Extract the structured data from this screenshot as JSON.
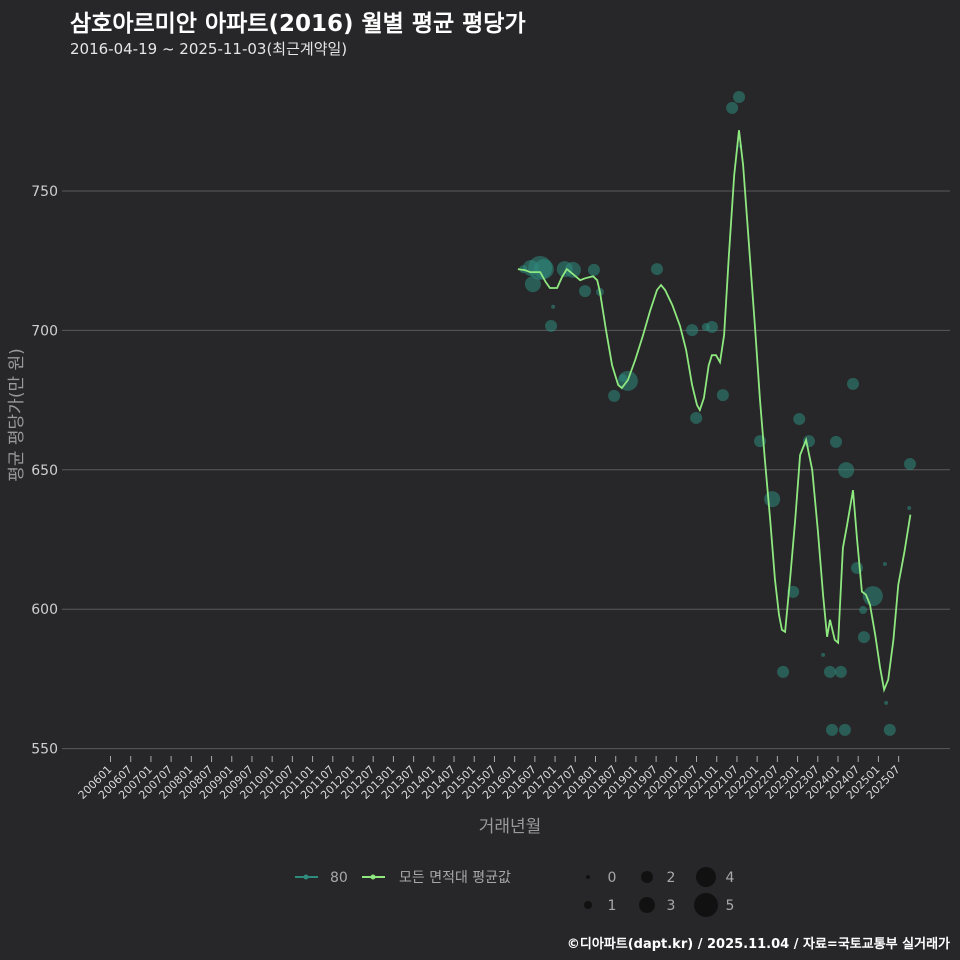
{
  "title": "삼호아르미안 아파트(2016) 월별 평균 평당가",
  "subtitle": "2016-04-19 ~ 2025-11-03(최근계약일)",
  "caption": "©디아파트(dapt.kr) / 2025.11.04 / 자료=국토교통부 실거래가",
  "colors": {
    "background": "#272729",
    "grid": "#5a5a5c",
    "line": "#8ee87f",
    "point": "#2f8a7e"
  },
  "chart_data": {
    "type": "line",
    "title": "삼호아르미안 아파트(2016) 월별 평균 평당가",
    "xlabel": "거래년월",
    "ylabel": "평균 평당가(만 원)",
    "ylim": [
      550,
      785
    ],
    "yticks": [
      550,
      600,
      650,
      700,
      750
    ],
    "xlim_year": [
      2006.0,
      2025.75
    ],
    "xticks": [
      "200601",
      "200607",
      "200701",
      "200707",
      "200801",
      "200807",
      "200901",
      "200907",
      "201001",
      "201007",
      "201101",
      "201107",
      "201201",
      "201207",
      "201301",
      "201307",
      "201401",
      "201407",
      "201501",
      "201507",
      "201601",
      "201607",
      "201701",
      "201707",
      "201801",
      "201807",
      "201901",
      "201907",
      "202001",
      "202007",
      "202101",
      "202107",
      "202201",
      "202207",
      "202301",
      "202307",
      "202401",
      "202407",
      "202501",
      "202507"
    ],
    "grid": true,
    "legend": {
      "position": "bottom",
      "series_items": [
        {
          "label": "80"
        },
        {
          "label": "모든 면적대 평균값"
        }
      ],
      "size_items": [
        "0",
        "1",
        "2",
        "3",
        "4",
        "5"
      ]
    },
    "series": [
      {
        "name": "모든 면적대 평균값",
        "type": "line",
        "points": [
          [
            2016.08,
            722.0
          ],
          [
            2016.26,
            721.6
          ],
          [
            2016.38,
            720.9
          ],
          [
            2016.63,
            720.9
          ],
          [
            2016.77,
            717.3
          ],
          [
            2016.87,
            715.2
          ],
          [
            2017.05,
            715.2
          ],
          [
            2017.17,
            719.1
          ],
          [
            2017.29,
            722.0
          ],
          [
            2017.44,
            720.2
          ],
          [
            2017.62,
            718.0
          ],
          [
            2017.74,
            718.7
          ],
          [
            2017.94,
            719.4
          ],
          [
            2018.04,
            718.0
          ],
          [
            2018.11,
            713.7
          ],
          [
            2018.26,
            700.1
          ],
          [
            2018.41,
            687.5
          ],
          [
            2018.56,
            680.4
          ],
          [
            2018.65,
            679.3
          ],
          [
            2018.8,
            682.2
          ],
          [
            2018.98,
            689.4
          ],
          [
            2019.17,
            698.0
          ],
          [
            2019.35,
            707.0
          ],
          [
            2019.52,
            714.5
          ],
          [
            2019.62,
            716.3
          ],
          [
            2019.72,
            714.5
          ],
          [
            2019.9,
            709.1
          ],
          [
            2020.09,
            701.6
          ],
          [
            2020.24,
            693.0
          ],
          [
            2020.39,
            680.4
          ],
          [
            2020.51,
            673.2
          ],
          [
            2020.58,
            671.4
          ],
          [
            2020.68,
            675.7
          ],
          [
            2020.8,
            687.5
          ],
          [
            2020.88,
            691.1
          ],
          [
            2020.98,
            691.1
          ],
          [
            2021.08,
            688.6
          ],
          [
            2021.18,
            698.3
          ],
          [
            2021.3,
            727.0
          ],
          [
            2021.43,
            755.7
          ],
          [
            2021.55,
            771.8
          ],
          [
            2021.65,
            759.3
          ],
          [
            2021.77,
            736.0
          ],
          [
            2021.95,
            700.1
          ],
          [
            2022.07,
            675.0
          ],
          [
            2022.19,
            653.5
          ],
          [
            2022.32,
            632.0
          ],
          [
            2022.44,
            610.5
          ],
          [
            2022.54,
            598.0
          ],
          [
            2022.61,
            592.6
          ],
          [
            2022.69,
            591.9
          ],
          [
            2022.81,
            610.5
          ],
          [
            2022.94,
            632.0
          ],
          [
            2023.06,
            655.3
          ],
          [
            2023.21,
            660.7
          ],
          [
            2023.36,
            650.0
          ],
          [
            2023.5,
            628.0
          ],
          [
            2023.63,
            605.0
          ],
          [
            2023.73,
            590.1
          ],
          [
            2023.8,
            596.2
          ],
          [
            2023.92,
            589.0
          ],
          [
            2024.0,
            588.0
          ],
          [
            2024.12,
            622.0
          ],
          [
            2024.22,
            630.0
          ],
          [
            2024.37,
            642.7
          ],
          [
            2024.47,
            624.9
          ],
          [
            2024.59,
            606.3
          ],
          [
            2024.69,
            605.2
          ],
          [
            2024.79,
            601.6
          ],
          [
            2024.92,
            590.8
          ],
          [
            2025.04,
            579.0
          ],
          [
            2025.14,
            571.1
          ],
          [
            2025.24,
            574.7
          ],
          [
            2025.37,
            589.0
          ],
          [
            2025.49,
            608.8
          ],
          [
            2025.64,
            620.3
          ],
          [
            2025.79,
            633.9
          ]
        ]
      },
      {
        "name": "80",
        "type": "scatter",
        "points": [
          [
            2016.21,
            722.0,
            1
          ],
          [
            2016.4,
            722.4,
            3
          ],
          [
            2016.63,
            722.4,
            5
          ],
          [
            2016.45,
            716.6,
            3
          ],
          [
            2016.72,
            722.0,
            4
          ],
          [
            2016.9,
            701.6,
            2
          ],
          [
            2016.95,
            708.5,
            0
          ],
          [
            2017.24,
            722.0,
            3
          ],
          [
            2017.44,
            721.7,
            3
          ],
          [
            2017.74,
            714.1,
            2
          ],
          [
            2017.96,
            721.7,
            2
          ],
          [
            2018.11,
            713.8,
            1
          ],
          [
            2018.46,
            676.5,
            2
          ],
          [
            2018.8,
            681.9,
            4
          ],
          [
            2018.68,
            682.9,
            1
          ],
          [
            2019.52,
            722.0,
            2
          ],
          [
            2020.39,
            700.1,
            2
          ],
          [
            2020.49,
            668.6,
            2
          ],
          [
            2020.88,
            701.2,
            2
          ],
          [
            2020.73,
            701.2,
            1
          ],
          [
            2021.15,
            676.8,
            2
          ],
          [
            2021.38,
            779.8,
            2
          ],
          [
            2021.55,
            783.7,
            2
          ],
          [
            2021.58,
            766.1,
            0
          ],
          [
            2022.07,
            660.3,
            2
          ],
          [
            2022.37,
            639.5,
            3
          ],
          [
            2022.64,
            577.5,
            2
          ],
          [
            2022.89,
            606.2,
            2
          ],
          [
            2023.04,
            668.2,
            2
          ],
          [
            2023.28,
            660.3,
            2
          ],
          [
            2023.63,
            583.6,
            0
          ],
          [
            2023.85,
            556.7,
            2
          ],
          [
            2023.95,
            660.0,
            2
          ],
          [
            2024.2,
            649.9,
            3
          ],
          [
            2023.8,
            577.5,
            2
          ],
          [
            2024.07,
            577.5,
            2
          ],
          [
            2024.17,
            556.7,
            2
          ],
          [
            2024.37,
            680.8,
            2
          ],
          [
            2024.47,
            614.8,
            2
          ],
          [
            2024.86,
            604.7,
            4
          ],
          [
            2025.28,
            556.7,
            2
          ],
          [
            2025.16,
            616.2,
            0
          ],
          [
            2025.78,
            652.1,
            2
          ],
          [
            2025.76,
            636.3,
            0
          ],
          [
            2025.19,
            566.4,
            0
          ],
          [
            2024.64,
            590.0,
            2
          ],
          [
            2024.62,
            599.7,
            1
          ]
        ]
      }
    ]
  }
}
